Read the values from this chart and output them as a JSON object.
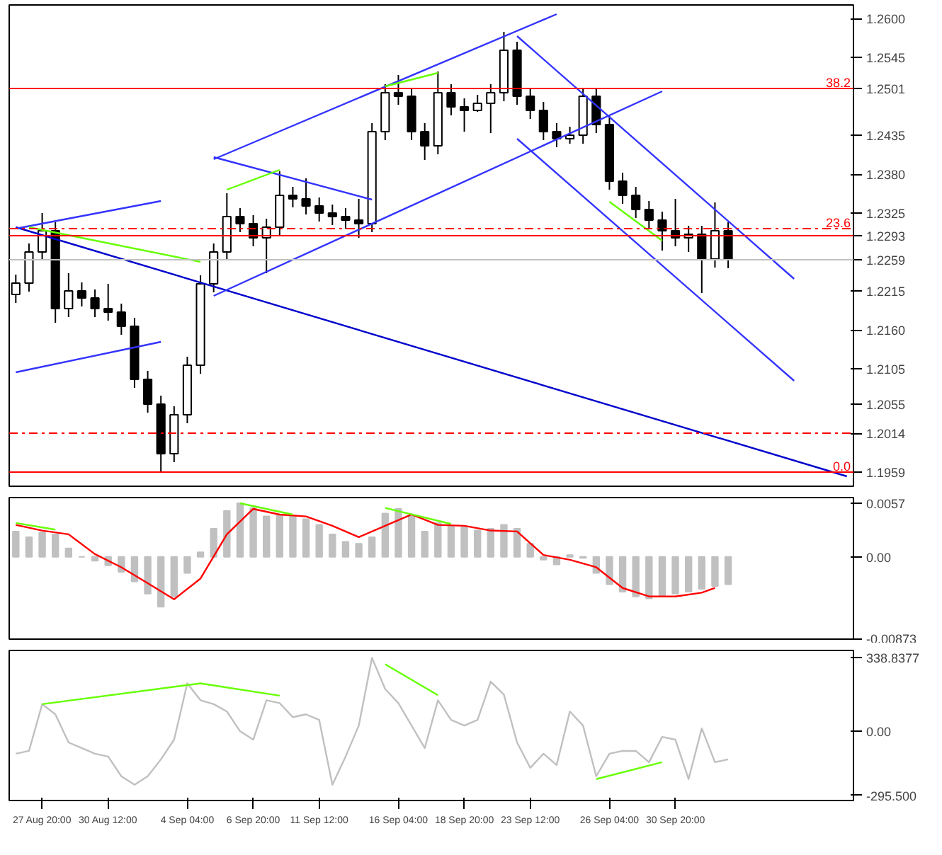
{
  "chart_data": [
    {
      "type": "candlestick",
      "ylim": [
        1.1939,
        1.2619
      ],
      "tick_labels": "y",
      "grid": false,
      "categories": [
        null,
        null,
        null,
        null,
        null,
        null,
        null,
        null,
        null,
        null,
        null,
        null,
        null,
        null,
        null,
        null,
        null,
        null,
        null,
        null,
        null,
        null,
        null,
        null,
        null,
        null,
        null,
        null,
        null,
        null,
        null,
        null,
        null,
        null,
        null,
        null,
        null,
        null,
        null,
        null,
        null,
        null,
        null,
        null,
        null,
        null,
        null,
        null,
        null,
        null,
        null,
        null,
        null,
        null,
        null,
        null,
        null,
        null,
        null,
        null,
        null,
        null,
        null,
        null
      ],
      "yticks": [
        {
          "value": 1.26,
          "label": "1.2600"
        },
        {
          "value": 1.2545,
          "label": "1.2545"
        },
        {
          "value": 1.2501,
          "label": "1.2501"
        },
        {
          "value": 1.2435,
          "label": "1.2435"
        },
        {
          "value": 1.238,
          "label": "1.2380"
        },
        {
          "value": 1.2325,
          "label": "1.2325"
        },
        {
          "value": 1.2293,
          "label": "1.2293"
        },
        {
          "value": 1.2259,
          "label": "1.2259"
        },
        {
          "value": 1.2215,
          "label": "1.2215"
        },
        {
          "value": 1.216,
          "label": "1.2160"
        },
        {
          "value": 1.2105,
          "label": "1.2105"
        },
        {
          "value": 1.2055,
          "label": "1.2055"
        },
        {
          "value": 1.2014,
          "label": "1.2014"
        },
        {
          "value": 1.1959,
          "label": "1.1959"
        }
      ],
      "ohlc": [
        [
          1.221,
          1.2238,
          1.2198,
          1.2226
        ],
        [
          1.2226,
          1.2282,
          1.2214,
          1.227
        ],
        [
          1.227,
          1.2325,
          1.2258,
          1.23
        ],
        [
          1.23,
          1.2312,
          1.217,
          1.219
        ],
        [
          1.219,
          1.224,
          1.2178,
          1.2215
        ],
        [
          1.2215,
          1.2227,
          1.2193,
          1.2205
        ],
        [
          1.2205,
          1.2217,
          1.2178,
          1.219
        ],
        [
          1.219,
          1.2225,
          1.2173,
          1.2185
        ],
        [
          1.2185,
          1.2197,
          1.2153,
          1.2165
        ],
        [
          1.2165,
          1.2177,
          1.2078,
          1.209
        ],
        [
          1.209,
          1.2102,
          1.2043,
          1.2055
        ],
        [
          1.2055,
          1.2067,
          1.196,
          1.1985
        ],
        [
          1.1985,
          1.2052,
          1.1973,
          1.204
        ],
        [
          1.204,
          1.2122,
          1.2028,
          1.211
        ],
        [
          1.211,
          1.2237,
          1.2098,
          1.2225
        ],
        [
          1.2225,
          1.2282,
          1.2213,
          1.227
        ],
        [
          1.227,
          1.2353,
          1.2258,
          1.232
        ],
        [
          1.232,
          1.2332,
          1.2298,
          1.231
        ],
        [
          1.231,
          1.2322,
          1.2278,
          1.229
        ],
        [
          1.229,
          1.2317,
          1.224,
          1.2305
        ],
        [
          1.2305,
          1.2384,
          1.2293,
          1.235
        ],
        [
          1.235,
          1.2362,
          1.2333,
          1.2345
        ],
        [
          1.2345,
          1.2374,
          1.2323,
          1.2335
        ],
        [
          1.2335,
          1.2347,
          1.2313,
          1.2325
        ],
        [
          1.2325,
          1.2337,
          1.2308,
          1.232
        ],
        [
          1.232,
          1.2332,
          1.2303,
          1.2315
        ],
        [
          1.2315,
          1.2345,
          1.229,
          1.231
        ],
        [
          1.231,
          1.2452,
          1.2298,
          1.244
        ],
        [
          1.244,
          1.2507,
          1.2428,
          1.2495
        ],
        [
          1.2495,
          1.252,
          1.2478,
          1.249
        ],
        [
          1.249,
          1.2502,
          1.2428,
          1.244
        ],
        [
          1.244,
          1.2452,
          1.24,
          1.242
        ],
        [
          1.242,
          1.2525,
          1.2408,
          1.2495
        ],
        [
          1.2495,
          1.2507,
          1.2463,
          1.2475
        ],
        [
          1.2475,
          1.2487,
          1.244,
          1.247
        ],
        [
          1.247,
          1.2492,
          1.2468,
          1.248
        ],
        [
          1.248,
          1.2507,
          1.2438,
          1.2495
        ],
        [
          1.2495,
          1.2581,
          1.2483,
          1.2555
        ],
        [
          1.2555,
          1.2567,
          1.2478,
          1.249
        ],
        [
          1.249,
          1.2502,
          1.2458,
          1.247
        ],
        [
          1.247,
          1.2482,
          1.2428,
          1.244
        ],
        [
          1.244,
          1.2452,
          1.2418,
          1.243
        ],
        [
          1.243,
          1.2447,
          1.2423,
          1.2435
        ],
        [
          1.2435,
          1.2502,
          1.2423,
          1.249
        ],
        [
          1.249,
          1.2502,
          1.2438,
          1.245
        ],
        [
          1.245,
          1.2462,
          1.2358,
          1.237
        ],
        [
          1.237,
          1.2382,
          1.2338,
          1.235
        ],
        [
          1.235,
          1.2362,
          1.2318,
          1.233
        ],
        [
          1.233,
          1.2342,
          1.2303,
          1.2315
        ],
        [
          1.2315,
          1.2327,
          1.2272,
          1.23
        ],
        [
          1.23,
          1.2345,
          1.2278,
          1.229
        ],
        [
          1.229,
          1.2307,
          1.227,
          1.2295
        ],
        [
          1.2295,
          1.2307,
          1.2212,
          1.226
        ],
        [
          1.226,
          1.234,
          1.2248,
          1.23
        ],
        [
          1.23,
          1.2312,
          1.2247,
          1.2259
        ],
        null,
        null,
        null,
        null,
        null,
        null,
        null,
        null,
        null
      ],
      "series": [
        {
          "type": "line",
          "color": "#0000cc",
          "values": [
            1.2305,
            null,
            null,
            null,
            null,
            null,
            null,
            null,
            null,
            null,
            null,
            null,
            null,
            null,
            null,
            null,
            null,
            null,
            null,
            null,
            null,
            null,
            null,
            null,
            null,
            null,
            null,
            null,
            null,
            null,
            null,
            null,
            null,
            null,
            null,
            null,
            null,
            null,
            null,
            null,
            null,
            null,
            null,
            null,
            null,
            null,
            null,
            null,
            null,
            null,
            null,
            null,
            null,
            null,
            null,
            null,
            null,
            null,
            null,
            null,
            null,
            null,
            null,
            1.1953
          ]
        },
        {
          "type": "line",
          "color": "#3333ff",
          "values": [
            null,
            null,
            null,
            null,
            null,
            null,
            null,
            null,
            null,
            null,
            null,
            null,
            null,
            null,
            null,
            1.2401,
            null,
            null,
            null,
            null,
            null,
            null,
            null,
            null,
            null,
            null,
            null,
            null,
            null,
            null,
            null,
            null,
            null,
            null,
            null,
            null,
            null,
            null,
            null,
            null,
            null,
            1.2606,
            null,
            null,
            null,
            null,
            null,
            null,
            null,
            null,
            null,
            null,
            null,
            null,
            null,
            null,
            null,
            null,
            null,
            null,
            null,
            null,
            null,
            null
          ]
        },
        {
          "type": "line",
          "color": "#3333ff",
          "values": [
            null,
            null,
            null,
            null,
            null,
            null,
            null,
            null,
            null,
            null,
            null,
            null,
            null,
            null,
            null,
            1.2208,
            null,
            null,
            null,
            null,
            null,
            null,
            null,
            null,
            null,
            null,
            null,
            null,
            null,
            null,
            null,
            null,
            null,
            null,
            null,
            null,
            null,
            null,
            null,
            null,
            null,
            null,
            null,
            null,
            null,
            null,
            null,
            null,
            null,
            1.2497,
            null,
            null,
            null,
            null,
            null,
            null,
            null,
            null,
            null,
            null,
            null,
            null,
            null,
            null
          ]
        },
        {
          "type": "line",
          "color": "#3333ff",
          "values": [
            null,
            null,
            null,
            null,
            null,
            null,
            null,
            null,
            null,
            null,
            null,
            null,
            null,
            null,
            null,
            null,
            null,
            null,
            null,
            null,
            null,
            null,
            null,
            null,
            null,
            null,
            null,
            null,
            null,
            null,
            null,
            null,
            null,
            null,
            null,
            null,
            null,
            null,
            1.2575,
            null,
            null,
            null,
            null,
            null,
            null,
            null,
            null,
            null,
            null,
            null,
            null,
            null,
            null,
            null,
            null,
            null,
            null,
            null,
            null,
            1.2232,
            null,
            null,
            null,
            null
          ]
        },
        {
          "type": "line",
          "color": "#3333ff",
          "values": [
            null,
            null,
            null,
            null,
            null,
            null,
            null,
            null,
            null,
            null,
            null,
            null,
            null,
            null,
            null,
            null,
            null,
            null,
            null,
            null,
            null,
            null,
            null,
            null,
            null,
            null,
            null,
            null,
            null,
            null,
            null,
            null,
            null,
            null,
            null,
            null,
            null,
            null,
            1.243,
            null,
            null,
            null,
            null,
            null,
            null,
            null,
            null,
            null,
            null,
            null,
            null,
            null,
            null,
            null,
            null,
            null,
            null,
            null,
            null,
            1.2088,
            null,
            null,
            null,
            null
          ]
        },
        {
          "type": "line",
          "color": "#3333ff",
          "values": [
            1.2303,
            null,
            null,
            null,
            null,
            null,
            null,
            null,
            null,
            null,
            null,
            1.2342,
            null,
            null,
            null,
            null,
            null,
            null,
            null,
            null,
            null,
            null,
            null,
            null,
            null,
            null,
            null,
            null,
            null,
            null,
            null,
            null,
            null,
            null,
            null,
            null,
            null,
            null,
            null,
            null,
            null,
            null,
            null,
            null,
            null,
            null,
            null,
            null,
            null,
            null,
            null,
            null,
            null,
            null,
            null,
            null,
            null,
            null,
            null,
            null,
            null,
            null,
            null,
            null
          ]
        },
        {
          "type": "line",
          "color": "#3333ff",
          "values": [
            1.21,
            null,
            null,
            null,
            null,
            null,
            null,
            null,
            null,
            null,
            null,
            1.2143,
            null,
            null,
            null,
            null,
            null,
            null,
            null,
            null,
            null,
            null,
            null,
            null,
            null,
            null,
            null,
            null,
            null,
            null,
            null,
            null,
            null,
            null,
            null,
            null,
            null,
            null,
            null,
            null,
            null,
            null,
            null,
            null,
            null,
            null,
            null,
            null,
            null,
            null,
            null,
            null,
            null,
            null,
            null,
            null,
            null,
            null,
            null,
            null,
            null,
            null,
            null,
            null
          ]
        },
        {
          "type": "line",
          "color": "#3333ff",
          "values": [
            null,
            null,
            null,
            null,
            null,
            null,
            null,
            null,
            null,
            null,
            null,
            null,
            null,
            null,
            null,
            1.2404,
            null,
            null,
            null,
            null,
            null,
            null,
            null,
            null,
            null,
            null,
            null,
            1.2344,
            null,
            null,
            null,
            null,
            null,
            null,
            null,
            null,
            null,
            null,
            null,
            null,
            null,
            null,
            null,
            null,
            null,
            null,
            null,
            null,
            null,
            null,
            null,
            null,
            null,
            null,
            null,
            null,
            null,
            null,
            null,
            null,
            null,
            null,
            null,
            null
          ]
        },
        {
          "type": "line",
          "color": "#66ff00",
          "values": [
            null,
            1.2305,
            null,
            null,
            null,
            null,
            null,
            null,
            null,
            null,
            null,
            null,
            null,
            null,
            1.2256,
            null,
            null,
            null,
            null,
            null,
            null,
            null,
            null,
            null,
            null,
            null,
            null,
            null,
            null,
            null,
            null,
            null,
            null,
            null,
            null,
            null,
            null,
            null,
            null,
            null,
            null,
            null,
            null,
            null,
            null,
            null,
            null,
            null,
            null,
            null,
            null,
            null,
            null,
            null,
            null,
            null,
            null,
            null,
            null,
            null,
            null,
            null,
            null,
            null
          ]
        },
        {
          "type": "line",
          "color": "#66ff00",
          "values": [
            null,
            null,
            null,
            null,
            null,
            null,
            null,
            null,
            null,
            null,
            null,
            null,
            null,
            null,
            null,
            null,
            1.2358,
            null,
            null,
            null,
            1.2386,
            null,
            null,
            null,
            null,
            null,
            null,
            null,
            null,
            null,
            null,
            null,
            null,
            null,
            null,
            null,
            null,
            null,
            null,
            null,
            null,
            null,
            null,
            null,
            null,
            null,
            null,
            null,
            null,
            null,
            null,
            null,
            null,
            null,
            null,
            null,
            null,
            null,
            null,
            null,
            null,
            null,
            null,
            null
          ]
        },
        {
          "type": "line",
          "color": "#66ff00",
          "values": [
            null,
            null,
            null,
            null,
            null,
            null,
            null,
            null,
            null,
            null,
            null,
            null,
            null,
            null,
            null,
            null,
            null,
            null,
            null,
            null,
            null,
            null,
            null,
            null,
            null,
            null,
            null,
            null,
            1.2504,
            null,
            null,
            null,
            1.2523,
            null,
            null,
            null,
            null,
            null,
            null,
            null,
            null,
            null,
            null,
            null,
            null,
            null,
            null,
            null,
            null,
            null,
            null,
            null,
            null,
            null,
            null,
            null,
            null,
            null,
            null,
            null,
            null,
            null,
            null,
            null
          ]
        },
        {
          "type": "line",
          "color": "#66ff00",
          "values": [
            null,
            null,
            null,
            null,
            null,
            null,
            null,
            null,
            null,
            null,
            null,
            null,
            null,
            null,
            null,
            null,
            null,
            null,
            null,
            null,
            null,
            null,
            null,
            null,
            null,
            null,
            null,
            null,
            null,
            null,
            null,
            null,
            null,
            null,
            null,
            null,
            null,
            null,
            null,
            null,
            null,
            null,
            null,
            null,
            null,
            1.2341,
            null,
            null,
            null,
            1.2286,
            null,
            null,
            null,
            null,
            null,
            null,
            null,
            null,
            null,
            null,
            null,
            null,
            null,
            null
          ]
        }
      ],
      "ref_lines": [
        {
          "axis": "y",
          "value": 1.2501,
          "label": null,
          "color": "#ff0000",
          "line_style": "solid"
        },
        {
          "axis": "y",
          "value": 1.2303,
          "label": null,
          "color": "#ff0000",
          "line_style": "dashed"
        },
        {
          "axis": "y",
          "value": 1.2293,
          "label": null,
          "color": "#ff0000",
          "line_style": "solid"
        },
        {
          "axis": "y",
          "value": 1.2259,
          "label": null,
          "color": "#c0c0c0",
          "line_style": "solid"
        },
        {
          "axis": "y",
          "value": 1.2014,
          "label": null,
          "color": "#ff0000",
          "line_style": "dashed"
        },
        {
          "axis": "y",
          "value": 1.1959,
          "label": null,
          "color": "#ff0000",
          "line_style": "solid"
        }
      ],
      "annotations": [
        {
          "text": "38.2",
          "y": 1.2501
        },
        {
          "text": "23.6",
          "y": 1.2303
        },
        {
          "text": "0.0",
          "y": 1.1959
        }
      ]
    },
    {
      "type": "bar",
      "ylim": [
        -0.00873,
        0.0063
      ],
      "tick_labels": "y",
      "grid": false,
      "categories": [
        null,
        null,
        null,
        null,
        null,
        null,
        null,
        null,
        null,
        null,
        null,
        null,
        null,
        null,
        null,
        null,
        null,
        null,
        null,
        null,
        null,
        null,
        null,
        null,
        null,
        null,
        null,
        null,
        null,
        null,
        null,
        null,
        null,
        null,
        null,
        null,
        null,
        null,
        null,
        null,
        null,
        null,
        null,
        null,
        null,
        null,
        null,
        null,
        null,
        null,
        null,
        null,
        null,
        null,
        null,
        null,
        null,
        null,
        null,
        null,
        null,
        null,
        null,
        null
      ],
      "yticks": [
        {
          "value": 0.0057,
          "label": "0.0057"
        },
        {
          "value": 0,
          "label": "0.00"
        },
        {
          "value": -0.00873,
          "label": "-0.00873"
        }
      ],
      "series": [
        {
          "type": "bar",
          "color": "#c0c0c0",
          "values": [
            0.0027,
            0.0021,
            0.0026,
            0.0024,
            0.0009,
            0,
            -0.0004,
            -0.0009,
            -0.0016,
            -0.0026,
            -0.0039,
            -0.0053,
            -0.0042,
            -0.0017,
            0.0005,
            0.003,
            0.0049,
            0.0057,
            0.0052,
            0.0043,
            0.0045,
            0.0043,
            0.004,
            0.0034,
            0.0024,
            0.0016,
            0.0014,
            0.0021,
            0.0046,
            0.0051,
            0.0043,
            0.0027,
            0.0036,
            0.0033,
            0.0032,
            0.0028,
            0.003,
            0.0034,
            0.003,
            0.0014,
            -0.0003,
            -0.0008,
            0.0002,
            -0.0001,
            -0.0017,
            -0.0029,
            -0.0037,
            -0.0042,
            -0.0044,
            -0.0041,
            -0.0039,
            -0.0037,
            -0.0034,
            -0.0031,
            -0.0029,
            null,
            null,
            null,
            null,
            null,
            null,
            null,
            null,
            null
          ]
        },
        {
          "type": "line",
          "color": "#ff0000",
          "values": [
            0.0034,
            null,
            0.0028,
            null,
            0.0024,
            null,
            0.0003,
            null,
            -0.0011,
            null,
            -0.0028,
            null,
            -0.0045,
            null,
            -0.0023,
            null,
            0.0024,
            null,
            0.0051,
            null,
            0.0045,
            null,
            0.0043,
            null,
            0.0033,
            null,
            0.0021,
            null,
            0.0033,
            null,
            0.0045,
            null,
            0.0034,
            null,
            0.0033,
            null,
            0.0028,
            null,
            0.0027,
            null,
            0.0002,
            null,
            -0.0003,
            null,
            -0.0011,
            null,
            -0.0033,
            null,
            -0.0042,
            null,
            -0.0042,
            null,
            -0.0038,
            -0.0033,
            null,
            null,
            null,
            null,
            null,
            null,
            null,
            null,
            null,
            null
          ]
        },
        {
          "type": "line",
          "color": "#66ff00",
          "values": [
            0.0036,
            null,
            null,
            0.0029,
            null,
            null,
            null,
            null,
            null,
            null,
            null,
            null,
            null,
            null,
            null,
            null,
            null,
            null,
            null,
            null,
            null,
            null,
            null,
            null,
            null,
            null,
            null,
            null,
            null,
            null,
            null,
            null,
            null,
            null,
            null,
            null,
            null,
            null,
            null,
            null,
            null,
            null,
            null,
            null,
            null,
            null,
            null,
            null,
            null,
            null,
            null,
            null,
            null,
            null,
            null,
            null,
            null,
            null,
            null,
            null,
            null,
            null,
            null,
            null
          ]
        },
        {
          "type": "line",
          "color": "#66ff00",
          "values": [
            null,
            null,
            null,
            null,
            null,
            null,
            null,
            null,
            null,
            null,
            null,
            null,
            null,
            null,
            null,
            null,
            null,
            0.0057,
            null,
            null,
            null,
            0.0045,
            null,
            null,
            null,
            null,
            null,
            null,
            null,
            null,
            null,
            null,
            null,
            null,
            null,
            null,
            null,
            null,
            null,
            null,
            null,
            null,
            null,
            null,
            null,
            null,
            null,
            null,
            null,
            null,
            null,
            null,
            null,
            null,
            null,
            null,
            null,
            null,
            null,
            null,
            null,
            null,
            null,
            null
          ]
        },
        {
          "type": "line",
          "color": "#66ff00",
          "values": [
            null,
            null,
            null,
            null,
            null,
            null,
            null,
            null,
            null,
            null,
            null,
            null,
            null,
            null,
            null,
            null,
            null,
            null,
            null,
            null,
            null,
            null,
            null,
            null,
            null,
            null,
            null,
            null,
            0.0052,
            null,
            null,
            null,
            null,
            0.0035,
            null,
            null,
            null,
            null,
            null,
            null,
            null,
            null,
            null,
            null,
            null,
            null,
            null,
            null,
            null,
            null,
            null,
            null,
            null,
            null,
            null,
            null,
            null,
            null,
            null,
            null,
            null,
            null,
            null,
            null
          ]
        }
      ]
    },
    {
      "type": "line",
      "ylim": [
        -320,
        373
      ],
      "grid": false,
      "categories": [
        null,
        null,
        "27 Aug 20:00",
        null,
        null,
        null,
        null,
        "30 Aug 12:00",
        null,
        null,
        null,
        null,
        null,
        "4 Sep 04:00",
        null,
        null,
        null,
        null,
        "6 Sep 20:00",
        null,
        null,
        null,
        null,
        "11 Sep 12:00",
        null,
        null,
        null,
        null,
        null,
        "16 Sep 04:00",
        null,
        null,
        null,
        null,
        "18 Sep 20:00",
        null,
        null,
        null,
        null,
        "23 Sep 12:00",
        null,
        null,
        null,
        null,
        null,
        "26 Sep 04:00",
        null,
        null,
        null,
        null,
        "30 Sep 20:00",
        null,
        null,
        null,
        null,
        null,
        null,
        null,
        null,
        null,
        null,
        null,
        null,
        null
      ],
      "yticks": [
        {
          "value": 338.8377,
          "label": "338.8377"
        },
        {
          "value": 0,
          "label": "0.00"
        },
        {
          "value": -295.5,
          "label": "-295.500"
        }
      ],
      "series": [
        {
          "type": "line",
          "color": "#c0c0c0",
          "values": [
            -104,
            -91,
            125,
            78,
            -52,
            -78,
            -104,
            -117,
            -208,
            -247,
            -208,
            -130,
            -39,
            221,
            143,
            125,
            91,
            0,
            -39,
            143,
            130,
            65,
            78,
            52,
            -247,
            -117,
            26,
            339,
            195,
            130,
            26,
            -78,
            143,
            52,
            26,
            52,
            229,
            169,
            -52,
            -169,
            -104,
            -156,
            91,
            26,
            -208,
            -104,
            -91,
            -91,
            -143,
            -26,
            -39,
            -221,
            13,
            -143,
            -130,
            null,
            null,
            null,
            null,
            null,
            null,
            null,
            null,
            null
          ]
        },
        {
          "type": "line",
          "color": "#66ff00",
          "values": [
            null,
            null,
            125,
            null,
            null,
            null,
            null,
            null,
            null,
            null,
            null,
            null,
            null,
            null,
            221,
            null,
            null,
            null,
            null,
            null,
            164,
            null,
            null,
            null,
            null,
            null,
            null,
            null,
            null,
            null,
            null,
            null,
            null,
            null,
            null,
            null,
            null,
            null,
            null,
            null,
            null,
            null,
            null,
            null,
            null,
            null,
            null,
            null,
            null,
            null,
            null,
            null,
            null,
            null,
            null,
            null,
            null,
            null,
            null,
            null,
            null,
            null,
            null,
            null
          ]
        },
        {
          "type": "line",
          "color": "#66ff00",
          "values": [
            null,
            null,
            null,
            null,
            null,
            null,
            null,
            null,
            null,
            null,
            null,
            null,
            null,
            null,
            null,
            null,
            null,
            null,
            null,
            null,
            null,
            null,
            null,
            null,
            null,
            null,
            null,
            null,
            309,
            null,
            null,
            null,
            166,
            null,
            null,
            null,
            null,
            null,
            null,
            null,
            null,
            null,
            null,
            null,
            null,
            null,
            null,
            null,
            null,
            null,
            null,
            null,
            null,
            null,
            null,
            null,
            null,
            null,
            null,
            null,
            null,
            null,
            null,
            null
          ]
        },
        {
          "type": "line",
          "color": "#66ff00",
          "values": [
            null,
            null,
            null,
            null,
            null,
            null,
            null,
            null,
            null,
            null,
            null,
            null,
            null,
            null,
            null,
            null,
            null,
            null,
            null,
            null,
            null,
            null,
            null,
            null,
            null,
            null,
            null,
            null,
            null,
            null,
            null,
            null,
            null,
            null,
            null,
            null,
            null,
            null,
            null,
            null,
            null,
            null,
            null,
            null,
            -221,
            null,
            null,
            null,
            null,
            -143,
            null,
            null,
            null,
            null,
            null,
            null,
            null,
            null,
            null,
            null,
            null,
            null,
            null,
            null
          ]
        }
      ]
    }
  ]
}
